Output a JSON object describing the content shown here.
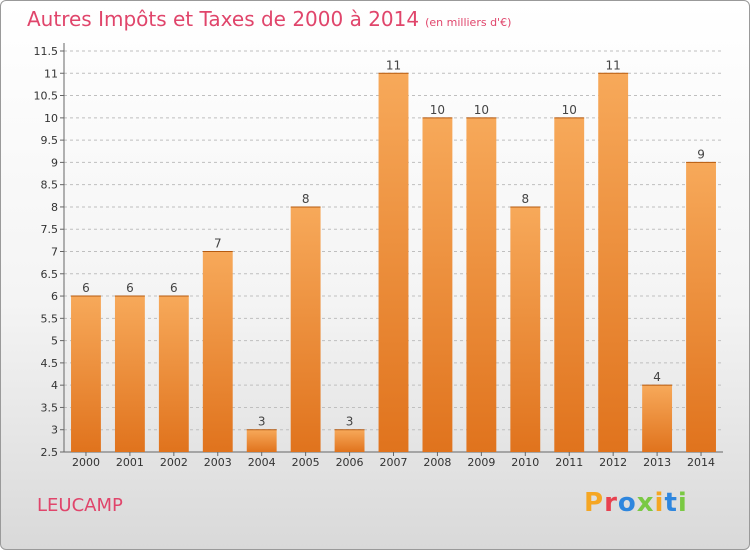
{
  "title": "Autres Impôts et Taxes de 2000 à 2014",
  "subtitle": "(en milliers d'€)",
  "place": "LEUCAMP",
  "logo": {
    "text": "Proxiti",
    "colors": [
      "#f5a623",
      "#e8414f",
      "#2e86de",
      "#7ac943",
      "#f5a623",
      "#2e86de",
      "#7ac943"
    ]
  },
  "colors": {
    "title": "#e0456b",
    "bar_light": "#f7a95a",
    "bar_dark": "#e0731d",
    "grid": "#bfbfbf"
  },
  "chart_data": {
    "type": "bar",
    "categories": [
      "2000",
      "2001",
      "2002",
      "2003",
      "2004",
      "2005",
      "2006",
      "2007",
      "2008",
      "2009",
      "2010",
      "2011",
      "2012",
      "2013",
      "2014"
    ],
    "values": [
      6,
      6,
      6,
      7,
      3,
      8,
      3,
      11,
      10,
      10,
      8,
      10,
      11,
      4,
      9
    ],
    "ylim": [
      2.5,
      11.5
    ],
    "yticks": [
      "2.5",
      "3",
      "3.5",
      "4",
      "4.5",
      "5",
      "5.5",
      "6",
      "6.5",
      "7",
      "7.5",
      "8",
      "8.5",
      "9",
      "9.5",
      "10",
      "10.5",
      "11",
      "11.5"
    ],
    "grid": true
  }
}
